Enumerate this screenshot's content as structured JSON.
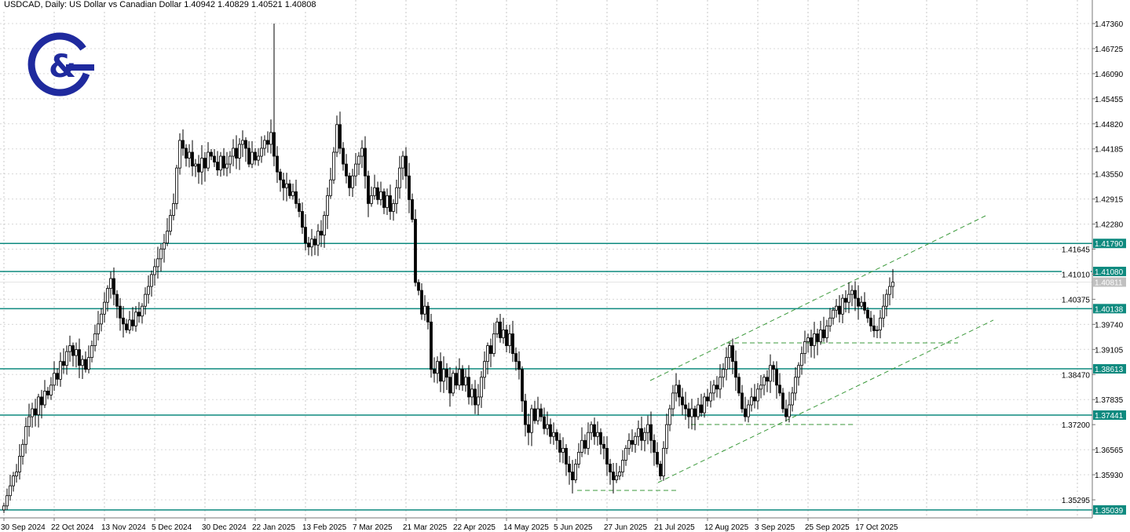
{
  "header": {
    "title": "USDCAD, Daily:  US Dollar vs Canadian Dollar  1.40942 1.40829 1.40521 1.40808"
  },
  "logo": {
    "text": "G&",
    "color": "#1f2a9e"
  },
  "colors": {
    "level": "#0e8a7f",
    "channel": "#3c9a3c",
    "bid": "#c0c0c0",
    "grid": "#b0b0b0"
  },
  "chart_data": {
    "type": "candlestick",
    "symbol": "USDCAD",
    "timeframe": "Daily",
    "ylim": [
      1.3494,
      1.48
    ],
    "y_ticks": [
      "1.47360",
      "1.46725",
      "1.46090",
      "1.45455",
      "1.44820",
      "1.44185",
      "1.43550",
      "1.42915",
      "1.42280",
      "1.41645",
      "1.41010",
      "1.40375",
      "1.39740",
      "1.39105",
      "1.38470",
      "1.37835",
      "1.37200",
      "1.36565",
      "1.35930",
      "1.35295"
    ],
    "x_ticks": [
      {
        "bar": 0,
        "label": "30 Sep 2024"
      },
      {
        "bar": 16,
        "label": "22 Oct 2024"
      },
      {
        "bar": 32,
        "label": "13 Nov 2024"
      },
      {
        "bar": 48,
        "label": "5 Dec 2024"
      },
      {
        "bar": 64,
        "label": "30 Dec 2024"
      },
      {
        "bar": 80,
        "label": "22 Jan 2025"
      },
      {
        "bar": 96,
        "label": "13 Feb 2025"
      },
      {
        "bar": 112,
        "label": "7 Mar 2025"
      },
      {
        "bar": 128,
        "label": "21 Mar 2025"
      },
      {
        "bar": 144,
        "label": "22 Apr 2025"
      },
      {
        "bar": 160,
        "label": "14 May 2025"
      },
      {
        "bar": 176,
        "label": "5 Jun 2025"
      },
      {
        "bar": 192,
        "label": "27 Jun 2025"
      },
      {
        "bar": 208,
        "label": "21 Jul 2025"
      },
      {
        "bar": 224,
        "label": "12 Aug 2025"
      },
      {
        "bar": 240,
        "label": "3 Sep 2025"
      },
      {
        "bar": 256,
        "label": "25 Sep 2025"
      },
      {
        "bar": 272,
        "label": "17 Oct 2025"
      }
    ],
    "closes": [
      1.3514,
      1.354,
      1.3565,
      1.359,
      1.36,
      1.364,
      1.367,
      1.3715,
      1.374,
      1.376,
      1.3745,
      1.379,
      1.377,
      1.3805,
      1.3795,
      1.382,
      1.385,
      1.3835,
      1.388,
      1.387,
      1.3905,
      1.392,
      1.3895,
      1.391,
      1.387,
      1.3885,
      1.386,
      1.389,
      1.392,
      1.395,
      1.3975,
      1.4,
      1.403,
      1.4065,
      1.409,
      1.405,
      1.402,
      1.399,
      1.3975,
      1.396,
      1.3985,
      1.397,
      1.4005,
      1.3995,
      1.402,
      1.405,
      1.407,
      1.41,
      1.412,
      1.414,
      1.4165,
      1.418,
      1.421,
      1.425,
      1.428,
      1.437,
      1.444,
      1.442,
      1.4395,
      1.441,
      1.4375,
      1.438,
      1.436,
      1.4395,
      1.437,
      1.441,
      1.44,
      1.4385,
      1.4365,
      1.44,
      1.437,
      1.438,
      1.44,
      1.442,
      1.4395,
      1.443,
      1.444,
      1.442,
      1.438,
      1.441,
      1.439,
      1.44,
      1.442,
      1.444,
      1.443,
      1.446,
      1.44,
      1.436,
      1.434,
      1.432,
      1.433,
      1.43,
      1.431,
      1.428,
      1.426,
      1.422,
      1.418,
      1.417,
      1.419,
      1.4175,
      1.421,
      1.42,
      1.425,
      1.43,
      1.434,
      1.441,
      1.448,
      1.442,
      1.438,
      1.435,
      1.432,
      1.435,
      1.438,
      1.44,
      1.442,
      1.435,
      1.428,
      1.43,
      1.432,
      1.429,
      1.431,
      1.427,
      1.43,
      1.426,
      1.428,
      1.432,
      1.437,
      1.44,
      1.435,
      1.429,
      1.424,
      1.408,
      1.406,
      1.4,
      1.402,
      1.398,
      1.386,
      1.385,
      1.388,
      1.383,
      1.386,
      1.384,
      1.38,
      1.385,
      1.382,
      1.386,
      1.382,
      1.384,
      1.379,
      1.381,
      1.377,
      1.379,
      1.384,
      1.388,
      1.392,
      1.39,
      1.395,
      1.398,
      1.394,
      1.396,
      1.392,
      1.395,
      1.39,
      1.388,
      1.386,
      1.378,
      1.372,
      1.37,
      1.376,
      1.373,
      1.376,
      1.374,
      1.371,
      1.372,
      1.369,
      1.37,
      1.368,
      1.365,
      1.366,
      1.362,
      1.36,
      1.358,
      1.362,
      1.365,
      1.368,
      1.366,
      1.37,
      1.372,
      1.369,
      1.37,
      1.367,
      1.366,
      1.362,
      1.36,
      1.358,
      1.359,
      1.36,
      1.363,
      1.366,
      1.368,
      1.367,
      1.369,
      1.371,
      1.368,
      1.37,
      1.372,
      1.368,
      1.365,
      1.362,
      1.359,
      1.366,
      1.372,
      1.376,
      1.38,
      1.382,
      1.379,
      1.377,
      1.376,
      1.374,
      1.376,
      1.374,
      1.377,
      1.375,
      1.379,
      1.378,
      1.38,
      1.382,
      1.381,
      1.384,
      1.386,
      1.389,
      1.392,
      1.388,
      1.384,
      1.38,
      1.376,
      1.374,
      1.377,
      1.379,
      1.378,
      1.381,
      1.382,
      1.384,
      1.383,
      1.387,
      1.386,
      1.382,
      1.38,
      1.376,
      1.374,
      1.377,
      1.38,
      1.384,
      1.387,
      1.39,
      1.393,
      1.394,
      1.392,
      1.395,
      1.393,
      1.396,
      1.394,
      1.397,
      1.399,
      1.401,
      1.402,
      1.4,
      1.404,
      1.403,
      1.405,
      1.406,
      1.404,
      1.402,
      1.403,
      1.401,
      1.399,
      1.397,
      1.3958,
      1.396,
      1.399,
      1.402,
      1.405,
      1.407,
      1.4081
    ],
    "notable_highs": [
      {
        "bar": 86,
        "high": 1.4736
      }
    ],
    "levels": [
      {
        "price": 1.4179,
        "label": "1.41790"
      },
      {
        "price": 1.4108,
        "label": "1.41080"
      },
      {
        "price": 1.40138,
        "label": "1.40138"
      },
      {
        "price": 1.38613,
        "label": "1.38613"
      },
      {
        "price": 1.37441,
        "label": "1.37441"
      },
      {
        "price": 1.35039,
        "label": "1.35039"
      }
    ],
    "bid": {
      "price": 1.40811,
      "label": "1.40811"
    },
    "trend_lines": [
      {
        "from": {
          "bar": 205.75,
          "price": 1.38316
        },
        "to": {
          "bar": 312.5,
          "price": 1.4249
        }
      },
      {
        "from": {
          "bar": 208.25,
          "price": 1.35732
        },
        "to": {
          "bar": 315,
          "price": 1.39847
        }
      },
      {
        "from": {
          "bar": 182.5,
          "price": 1.35533
        },
        "to": {
          "bar": 215,
          "price": 1.35533
        }
      },
      {
        "from": {
          "bar": 218.75,
          "price": 1.37203
        },
        "to": {
          "bar": 270.75,
          "price": 1.37203
        }
      },
      {
        "from": {
          "bar": 230,
          "price": 1.3927
        },
        "to": {
          "bar": 303.75,
          "price": 1.3927
        }
      }
    ]
  }
}
